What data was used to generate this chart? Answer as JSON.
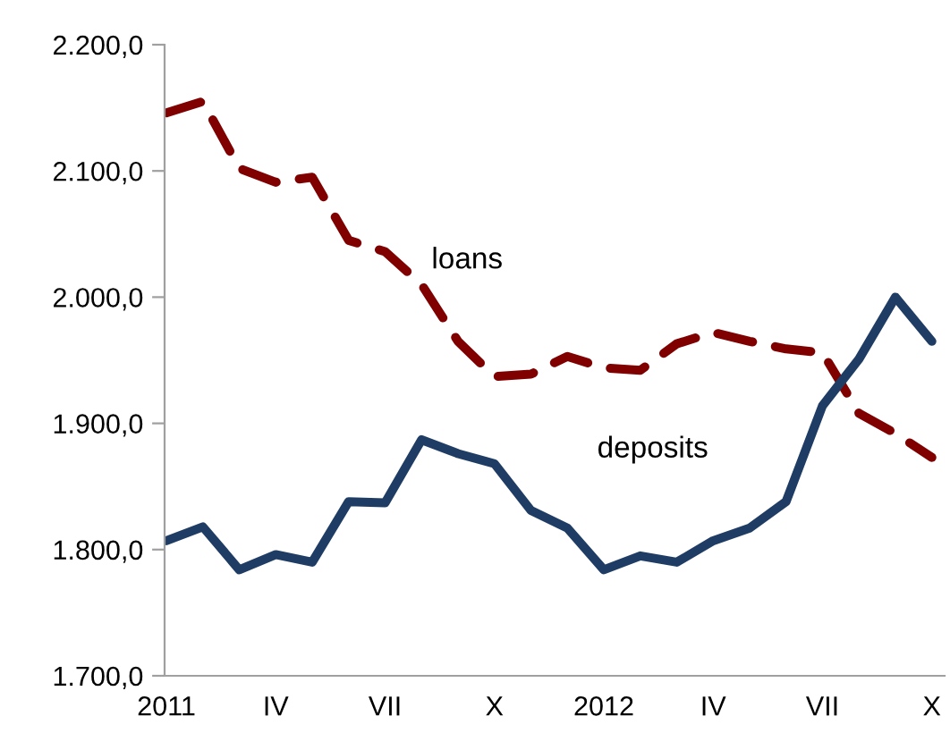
{
  "chart_data": {
    "type": "line",
    "categories": [
      "2011",
      null,
      null,
      "IV",
      null,
      null,
      "VII",
      null,
      null,
      "X",
      null,
      null,
      "2012",
      null,
      null,
      "IV",
      null,
      null,
      "VII",
      null,
      null,
      "X"
    ],
    "series": [
      {
        "name": "loans",
        "color": "#800000",
        "line_style": "dashed",
        "values": [
          2146,
          2155,
          2102,
          2091,
          2095,
          2045,
          2036,
          2010,
          1965,
          1937,
          1939,
          1953,
          1944,
          1942,
          1963,
          1972,
          1965,
          1959,
          1956,
          1908,
          1892,
          1873
        ]
      },
      {
        "name": "deposits",
        "color": "#1f3d64",
        "line_style": "solid",
        "values": [
          1807,
          1818,
          1784,
          1796,
          1790,
          1838,
          1837,
          1887,
          1876,
          1868,
          1831,
          1817,
          1784,
          1795,
          1790,
          1807,
          1817,
          1838,
          1914,
          1951,
          2000,
          1965
        ]
      }
    ],
    "ylim": [
      1700,
      2200
    ],
    "yticks": [
      {
        "value": 1700,
        "label": "1.700,0"
      },
      {
        "value": 1800,
        "label": "1.800,0"
      },
      {
        "value": 1900,
        "label": "1.900,0"
      },
      {
        "value": 2000,
        "label": "2.000,0"
      },
      {
        "value": 2100,
        "label": "2.100,0"
      },
      {
        "value": 2200,
        "label": "2.200,0"
      }
    ],
    "grid": false,
    "legend": false,
    "marker": "none"
  }
}
